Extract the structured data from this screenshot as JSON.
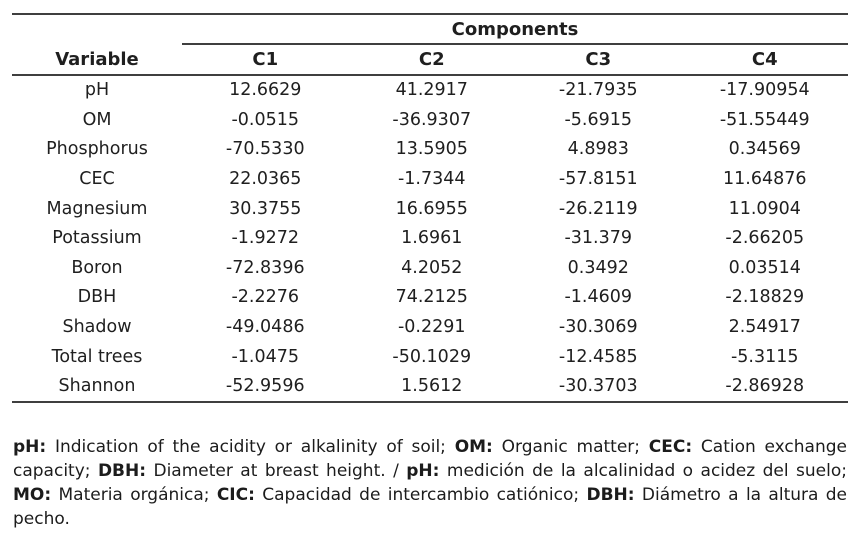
{
  "table": {
    "group_header": "Components",
    "columns": [
      "Variable",
      "C1",
      "C2",
      "C3",
      "C4"
    ],
    "rows": [
      [
        "pH",
        "12.6629",
        "41.2917",
        "-21.7935",
        "-17.90954"
      ],
      [
        "OM",
        "-0.0515",
        "-36.9307",
        "-5.6915",
        "-51.55449"
      ],
      [
        "Phosphorus",
        "-70.5330",
        "13.5905",
        "4.8983",
        "0.34569"
      ],
      [
        "CEC",
        "22.0365",
        "-1.7344",
        "-57.8151",
        "11.64876"
      ],
      [
        "Magnesium",
        "30.3755",
        "16.6955",
        "-26.2119",
        "11.0904"
      ],
      [
        "Potassium",
        "-1.9272",
        "1.6961",
        "-31.379",
        "-2.66205"
      ],
      [
        "Boron",
        "-72.8396",
        "4.2052",
        "0.3492",
        "0.03514"
      ],
      [
        "DBH",
        "-2.2276",
        "74.2125",
        "-1.4609",
        "-2.18829"
      ],
      [
        "Shadow",
        "-49.0486",
        "-0.2291",
        "-30.3069",
        "2.54917"
      ],
      [
        "Total trees",
        "-1.0475",
        "-50.1029",
        "-12.4585",
        "-5.3115"
      ],
      [
        "Shannon",
        "-52.9596",
        "1.5612",
        "-30.3703",
        "-2.86928"
      ]
    ]
  },
  "footnote": {
    "segments": [
      {
        "bold": true,
        "text": "pH:"
      },
      {
        "bold": false,
        "text": " Indication of the acidity or alkalinity of soil; "
      },
      {
        "bold": true,
        "text": "OM:"
      },
      {
        "bold": false,
        "text": " Organic matter; "
      },
      {
        "bold": true,
        "text": "CEC:"
      },
      {
        "bold": false,
        "text": " Cation exchange capacity; "
      },
      {
        "bold": true,
        "text": "DBH:"
      },
      {
        "bold": false,
        "text": " Diameter at breast height. / "
      },
      {
        "bold": true,
        "text": "pH:"
      },
      {
        "bold": false,
        "text": " medición de la alcalinidad o acidez del suelo; "
      },
      {
        "bold": true,
        "text": "MO:"
      },
      {
        "bold": false,
        "text": " Materia orgánica; "
      },
      {
        "bold": true,
        "text": "CIC:"
      },
      {
        "bold": false,
        "text": " Capacidad de intercambio catiónico; "
      },
      {
        "bold": true,
        "text": "DBH:"
      },
      {
        "bold": false,
        "text": " Diámetro a la altura de pecho."
      }
    ]
  },
  "colors": {
    "text": "#1f1f1f",
    "rule": "#3f3f3f",
    "background": "#ffffff"
  }
}
